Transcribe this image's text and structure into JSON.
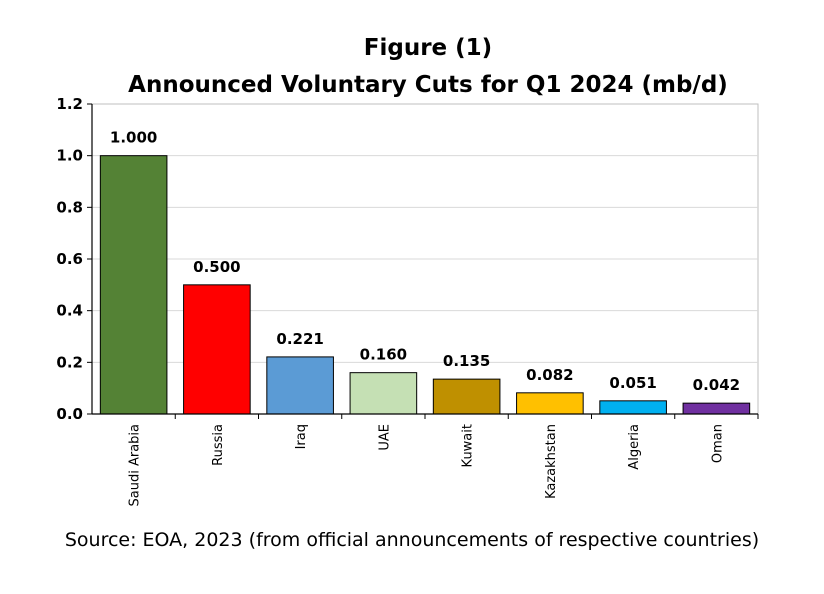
{
  "chart_data": {
    "type": "bar",
    "title": "Figure (1)",
    "subtitle": "Announced Voluntary Cuts for Q1 2024 (mb/d)",
    "categories": [
      "Saudi Arabia",
      "Russia",
      "Iraq",
      "UAE",
      "Kuwait",
      "Kazakhstan",
      "Algeria",
      "Oman"
    ],
    "values": [
      1.0,
      0.5,
      0.221,
      0.16,
      0.135,
      0.082,
      0.051,
      0.042
    ],
    "data_labels": [
      "1.000",
      "0.500",
      "0.221",
      "0.160",
      "0.135",
      "0.082",
      "0.051",
      "0.042"
    ],
    "colors": [
      "#548235",
      "#ff0000",
      "#5b9bd5",
      "#c5e0b4",
      "#bf9000",
      "#ffc000",
      "#00b0f0",
      "#7030a0"
    ],
    "ylim": [
      0,
      1.2
    ],
    "yticks": [
      "0.0",
      "0.2",
      "0.4",
      "0.6",
      "0.8",
      "1.0",
      "1.2"
    ],
    "grid": true,
    "xlabel": "",
    "ylabel": "",
    "source": "Source: EOA, 2023 (from official announcements of respective countries)"
  }
}
